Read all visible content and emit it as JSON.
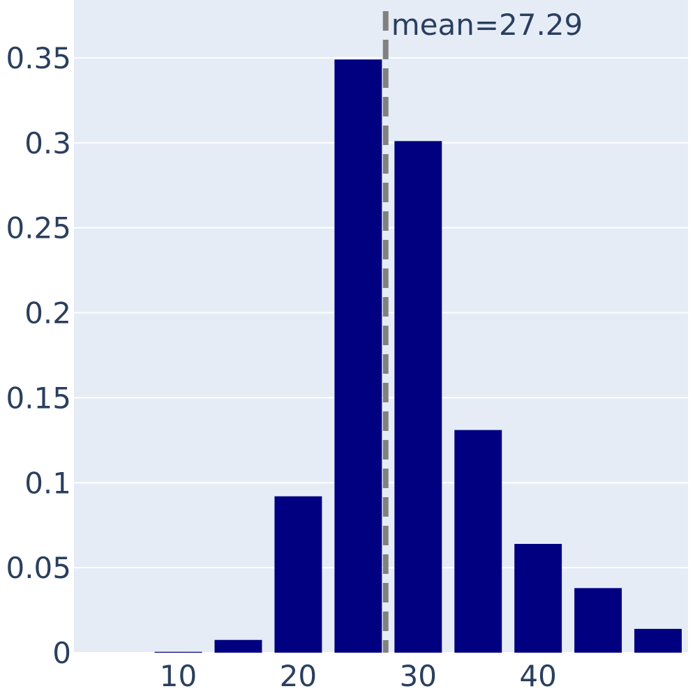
{
  "chart_data": {
    "type": "bar",
    "bins": [
      {
        "x0": 2.5,
        "x1": 7.5,
        "value": 0.0
      },
      {
        "x0": 7.5,
        "x1": 12.5,
        "value": 0.0005
      },
      {
        "x0": 12.5,
        "x1": 17.5,
        "value": 0.0075
      },
      {
        "x0": 17.5,
        "x1": 22.5,
        "value": 0.092
      },
      {
        "x0": 22.5,
        "x1": 27.5,
        "value": 0.349
      },
      {
        "x0": 27.5,
        "x1": 32.5,
        "value": 0.301
      },
      {
        "x0": 32.5,
        "x1": 37.5,
        "value": 0.131
      },
      {
        "x0": 37.5,
        "x1": 42.5,
        "value": 0.064
      },
      {
        "x0": 42.5,
        "x1": 47.5,
        "value": 0.038
      },
      {
        "x0": 47.5,
        "x1": 52.5,
        "value": 0.014
      }
    ],
    "xlim": [
      1.3,
      52.5
    ],
    "ylim": [
      0,
      0.384
    ],
    "x_ticks": [
      "10",
      "20",
      "30",
      "40"
    ],
    "x_tick_values": [
      10,
      20,
      30,
      40
    ],
    "y_ticks": [
      "0",
      "0.05",
      "0.1",
      "0.15",
      "0.2",
      "0.25",
      "0.3",
      "0.35"
    ],
    "y_tick_values": [
      0,
      0.05,
      0.1,
      0.15,
      0.2,
      0.25,
      0.3,
      0.35
    ],
    "mean_line": {
      "x": 27.29,
      "label": "mean=27.29",
      "style": "dashed"
    },
    "title": "",
    "xlabel": "",
    "ylabel": "",
    "grid": true,
    "colors": {
      "bar": "#000080",
      "plot_bg": "#e5ecf6",
      "grid": "#ffffff",
      "mean_line": "#808080",
      "text": "#2a3f5f"
    }
  }
}
